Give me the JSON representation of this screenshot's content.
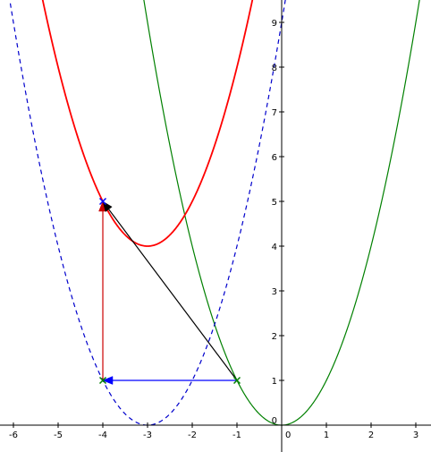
{
  "chart_data": {
    "type": "line",
    "title": "",
    "xlabel": "",
    "ylabel": "",
    "xlim": [
      -6.35,
      3.3
    ],
    "ylim": [
      -0.6,
      9.5
    ],
    "grid": false,
    "x_ticks": [
      -6,
      -5,
      -4,
      -3,
      -2,
      -1,
      0,
      1,
      2,
      3
    ],
    "x_tick_labels": [
      "-6",
      "-5",
      "-4",
      "-3",
      "-2",
      "-1",
      "0",
      "1",
      "2",
      "3"
    ],
    "y_ticks": [
      1,
      2,
      3,
      4,
      5,
      6,
      7,
      8,
      9
    ],
    "y_tick_labels": [
      "1",
      "2",
      "3",
      "4",
      "5",
      "6",
      "7",
      "8",
      "9"
    ],
    "origin_label": "0",
    "curves": [
      {
        "id": "green",
        "formula": "y = x^2",
        "a": 1,
        "h": 0,
        "k": 0,
        "color": "#008000",
        "style": "solid",
        "x_range": [
          -3.2,
          3.2
        ]
      },
      {
        "id": "blue-dashed",
        "formula": "y = (x + 3)^2",
        "a": 1,
        "h": -3,
        "k": 0,
        "color": "#0000cc",
        "style": "dashed",
        "x_range": [
          -6.4,
          0.1
        ]
      },
      {
        "id": "red",
        "formula": "y = (x + 3)^2 + 4",
        "a": 1,
        "h": -3,
        "k": 4,
        "color": "#ff0000",
        "style": "solid",
        "x_range": [
          -5.4,
          -0.6
        ]
      }
    ],
    "points": [
      {
        "id": "P1",
        "x": -1,
        "y": 1,
        "color": "#008000"
      },
      {
        "id": "P2",
        "x": -4,
        "y": 1,
        "color": "#008000"
      },
      {
        "id": "P3",
        "x": -4,
        "y": 5,
        "color": "#0000ff"
      }
    ],
    "vectors": [
      {
        "id": "blue-vector",
        "from": [
          -1,
          1
        ],
        "to": [
          -4,
          1
        ],
        "color": "#0000ff"
      },
      {
        "id": "red-vector",
        "from": [
          -4,
          1
        ],
        "to": [
          -4,
          5
        ],
        "color": "#cc0000"
      },
      {
        "id": "black-vector",
        "from": [
          -1,
          1
        ],
        "to": [
          -4,
          5
        ],
        "color": "#000000"
      }
    ]
  }
}
